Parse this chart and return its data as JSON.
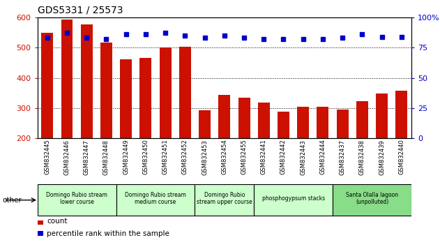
{
  "title": "GDS5331 / 25573",
  "samples": [
    "GSM832445",
    "GSM832446",
    "GSM832447",
    "GSM832448",
    "GSM832449",
    "GSM832450",
    "GSM832451",
    "GSM832452",
    "GSM832453",
    "GSM832454",
    "GSM832455",
    "GSM832441",
    "GSM832442",
    "GSM832443",
    "GSM832444",
    "GSM832437",
    "GSM832438",
    "GSM832439",
    "GSM832440"
  ],
  "counts": [
    548,
    593,
    576,
    516,
    462,
    466,
    501,
    503,
    293,
    344,
    334,
    318,
    289,
    305,
    305,
    296,
    323,
    347,
    358
  ],
  "percentile": [
    83,
    87,
    83,
    82,
    86,
    86,
    87,
    85,
    83,
    85,
    83,
    82,
    82,
    82,
    82,
    83,
    86,
    84,
    84
  ],
  "ymin": 200,
  "ymax": 600,
  "yticks": [
    200,
    300,
    400,
    500,
    600
  ],
  "right_yticks": [
    0,
    25,
    50,
    75,
    100
  ],
  "bar_color": "#cc1100",
  "dot_color": "#0000cc",
  "bg_color": "#ffffff",
  "tick_color_left": "#cc1100",
  "tick_color_right": "#0000cc",
  "groups": [
    {
      "label": "Domingo Rubio stream\nlower course",
      "start": 0,
      "end": 3,
      "color": "#ccffcc"
    },
    {
      "label": "Domingo Rubio stream\nmedium course",
      "start": 4,
      "end": 7,
      "color": "#ccffcc"
    },
    {
      "label": "Domingo Rubio\nstream upper course",
      "start": 8,
      "end": 10,
      "color": "#ccffcc"
    },
    {
      "label": "phosphogypsum stacks",
      "start": 11,
      "end": 14,
      "color": "#ccffcc"
    },
    {
      "label": "Santa Olalla lagoon\n(unpolluted)",
      "start": 15,
      "end": 18,
      "color": "#88dd88"
    }
  ],
  "legend_count_label": "count",
  "legend_pct_label": "percentile rank within the sample",
  "other_label": "other"
}
